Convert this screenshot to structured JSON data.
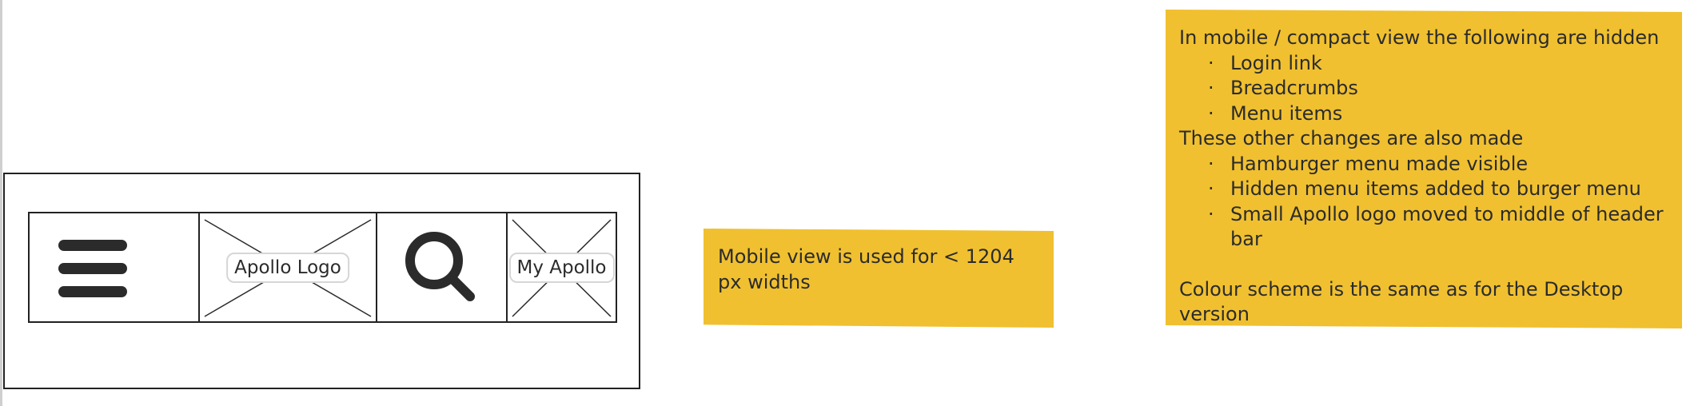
{
  "wireframe": {
    "cells": [
      {
        "id": "hamburger",
        "icon": "hamburger-menu-icon"
      },
      {
        "id": "logo",
        "label": "Apollo Logo"
      },
      {
        "id": "search",
        "icon": "search-icon"
      },
      {
        "id": "my_apollo",
        "label": "My Apollo"
      }
    ]
  },
  "notes": {
    "mobile": {
      "text": "Mobile view is used for < 1204 px widths",
      "color": "#f0c030"
    },
    "compact": {
      "heading": "In mobile / compact view the following are hidden",
      "hidden_items": [
        "Login link",
        "Breadcrumbs",
        "Menu items"
      ],
      "changes_heading": "These other changes are also made",
      "change_items": [
        "Hamburger menu made visible",
        "Hidden menu items added to burger menu",
        "Small Apollo logo moved to middle of header bar"
      ],
      "footer": "Colour scheme is the same as for the Desktop version",
      "color": "#f0c030"
    }
  }
}
